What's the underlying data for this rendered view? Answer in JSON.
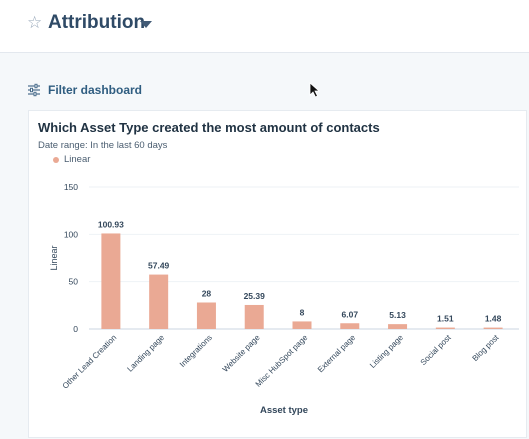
{
  "header": {
    "title": "Attribution",
    "star_icon": "star-outline-icon",
    "dropdown_icon": "caret-down-icon"
  },
  "filter": {
    "label": "Filter dashboard",
    "icon": "sliders-icon"
  },
  "card": {
    "title": "Which Asset Type created the most amount of contacts",
    "date_range": "Date range: In the last 60 days"
  },
  "chart_data": {
    "type": "bar",
    "xlabel": "Asset type",
    "ylabel": "Linear",
    "ylim": [
      0,
      150
    ],
    "yticks": [
      0,
      50,
      100,
      150
    ],
    "grid": true,
    "legend": "top-left",
    "categories": [
      "Other Lead Creation",
      "Landing page",
      "Integrations",
      "Website page",
      "Misc HubSpot page",
      "External page",
      "Listing page",
      "Social post",
      "Blog post"
    ],
    "series": [
      {
        "name": "Linear",
        "color": "#eaa994",
        "values": [
          100.93,
          57.49,
          28,
          25.39,
          8,
          6.07,
          5.13,
          1.51,
          1.48
        ]
      }
    ],
    "value_labels": [
      "100.93",
      "57.49",
      "28",
      "25.39",
      "8",
      "6.07",
      "5.13",
      "1.51",
      "1.48"
    ]
  }
}
